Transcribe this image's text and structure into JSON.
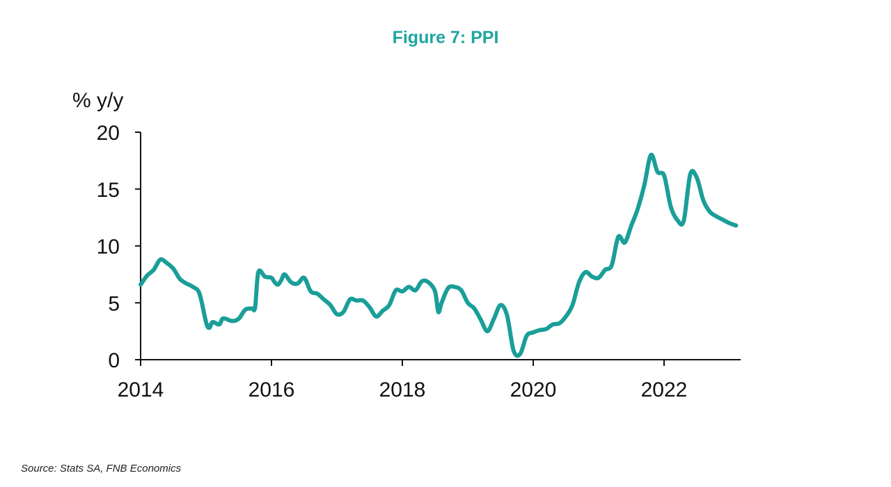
{
  "title": "Figure 7: PPI",
  "source": "Source: Stats SA, FNB Economics",
  "colors": {
    "title": "#1fa5a0",
    "line": "#1a9e98",
    "axis": "#111111"
  },
  "chart_data": {
    "type": "line",
    "title": "Figure 7: PPI",
    "ylabel": "% y/y",
    "xlabel": "",
    "xlim": [
      2014,
      2023.15
    ],
    "ylim": [
      0,
      20
    ],
    "x_ticks": [
      "2014",
      "2016",
      "2018",
      "2020",
      "2022"
    ],
    "y_ticks": [
      "0",
      "5",
      "10",
      "15",
      "20"
    ],
    "grid": false,
    "legend": "none",
    "series": [
      {
        "name": "",
        "x": [
          2014.0,
          2014.1,
          2014.2,
          2014.3,
          2014.4,
          2014.5,
          2014.6,
          2014.7,
          2014.8,
          2014.9,
          2015.0,
          2015.05,
          2015.1,
          2015.2,
          2015.25,
          2015.3,
          2015.4,
          2015.5,
          2015.6,
          2015.7,
          2015.75,
          2015.8,
          2015.9,
          2016.0,
          2016.05,
          2016.1,
          2016.15,
          2016.2,
          2016.3,
          2016.4,
          2016.5,
          2016.6,
          2016.7,
          2016.8,
          2016.9,
          2017.0,
          2017.1,
          2017.2,
          2017.3,
          2017.4,
          2017.5,
          2017.6,
          2017.7,
          2017.8,
          2017.9,
          2018.0,
          2018.1,
          2018.2,
          2018.3,
          2018.4,
          2018.5,
          2018.55,
          2018.6,
          2018.7,
          2018.8,
          2018.9,
          2019.0,
          2019.1,
          2019.2,
          2019.3,
          2019.4,
          2019.5,
          2019.6,
          2019.7,
          2019.8,
          2019.9,
          2020.0,
          2020.1,
          2020.2,
          2020.3,
          2020.4,
          2020.5,
          2020.6,
          2020.7,
          2020.8,
          2020.9,
          2021.0,
          2021.1,
          2021.2,
          2021.3,
          2021.4,
          2021.5,
          2021.6,
          2021.7,
          2021.8,
          2021.9,
          2022.0,
          2022.1,
          2022.2,
          2022.3,
          2022.4,
          2022.5,
          2022.6,
          2022.7,
          2022.8,
          2022.9,
          2023.0,
          2023.1
        ],
        "values": [
          6.6,
          7.4,
          7.9,
          8.8,
          8.5,
          8.0,
          7.1,
          6.7,
          6.4,
          5.8,
          3.3,
          2.8,
          3.3,
          3.1,
          3.6,
          3.6,
          3.4,
          3.6,
          4.4,
          4.5,
          4.6,
          7.7,
          7.3,
          7.2,
          6.8,
          6.6,
          7.0,
          7.5,
          6.8,
          6.7,
          7.2,
          6.0,
          5.8,
          5.3,
          4.8,
          4.0,
          4.2,
          5.3,
          5.2,
          5.2,
          4.6,
          3.8,
          4.3,
          4.8,
          6.1,
          6.0,
          6.4,
          6.1,
          6.9,
          6.8,
          6.0,
          4.2,
          5.0,
          6.3,
          6.4,
          6.1,
          5.0,
          4.5,
          3.5,
          2.5,
          3.6,
          4.8,
          3.9,
          0.8,
          0.5,
          2.1,
          2.4,
          2.6,
          2.7,
          3.1,
          3.2,
          3.8,
          4.8,
          6.8,
          7.7,
          7.3,
          7.2,
          7.9,
          8.3,
          10.8,
          10.3,
          11.8,
          13.3,
          15.4,
          18.0,
          16.5,
          16.2,
          13.5,
          12.3,
          12.2,
          16.3,
          16.0,
          14.0,
          13.0,
          12.6,
          12.3,
          12.0,
          11.8
        ]
      }
    ]
  }
}
